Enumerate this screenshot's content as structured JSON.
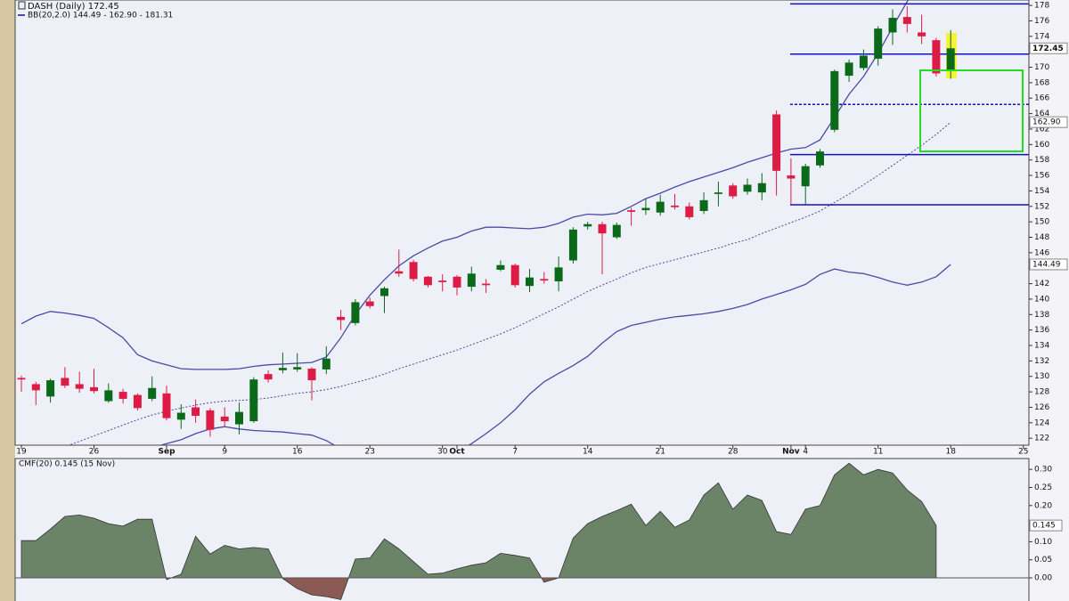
{
  "chart_data": [
    {
      "type": "candlestick",
      "title": "DASH (Daily) 172.45",
      "categories": [
        "19",
        null,
        null,
        null,
        null,
        "26",
        null,
        null,
        null,
        null,
        "Sep",
        null,
        null,
        null,
        "9",
        null,
        null,
        null,
        null,
        "16",
        null,
        null,
        null,
        null,
        "23",
        null,
        null,
        null,
        null,
        "30",
        "Oct",
        null,
        null,
        null,
        "7",
        null,
        null,
        null,
        null,
        "14",
        null,
        null,
        null,
        null,
        "21",
        null,
        null,
        null,
        null,
        "28",
        null,
        null,
        null,
        "Nov",
        "4",
        null,
        null,
        null,
        null,
        "11",
        null,
        null,
        null,
        null,
        "18",
        null,
        null,
        null,
        null,
        "25"
      ],
      "open": [
        129.8,
        129,
        127.4,
        129.8,
        129,
        128.6,
        126.8,
        128,
        127.6,
        127.1,
        127.8,
        124.4,
        126,
        125.6,
        124.8,
        123.8,
        124.2,
        130.3,
        130.8,
        130.9,
        131,
        130.9,
        137.7,
        136.9,
        139.7,
        140.4,
        143.6,
        144.8,
        142.9,
        142.4,
        142.9,
        141.6,
        142,
        143.8,
        144.4,
        141.7,
        142.6,
        142.3,
        145,
        149.4,
        149.7,
        148,
        151.5,
        151.5,
        151.2,
        152.1,
        152,
        151.4,
        153.6,
        154.7,
        153.9,
        153.8,
        163.9,
        156,
        154.6,
        157.3,
        161.9,
        168.9,
        169.9,
        171.1,
        174.5,
        176.5,
        174.5,
        173.5,
        169.5,
        null,
        null,
        null,
        null,
        null
      ],
      "high": [
        130.1,
        129.3,
        129.7,
        131.2,
        130.6,
        131,
        129.1,
        128.4,
        127.8,
        130,
        128.8,
        126.4,
        127,
        125.9,
        126,
        126.6,
        129.9,
        130.8,
        133.1,
        133,
        131.2,
        133.9,
        138.6,
        140,
        140.2,
        141.6,
        146.4,
        145.1,
        143,
        143.2,
        143.1,
        144.2,
        142.6,
        145,
        144.6,
        143.9,
        143.5,
        145.5,
        149.3,
        150,
        150,
        149.9,
        151.8,
        153,
        153.5,
        153.6,
        152.5,
        153.8,
        155.2,
        155,
        155.6,
        156.3,
        164.4,
        158.2,
        157.5,
        159.4,
        169.7,
        171,
        172.3,
        175.3,
        177.5,
        177.9,
        176.8,
        173.8,
        174.8,
        null,
        null,
        null,
        null,
        null
      ],
      "low": [
        128,
        126.3,
        126.6,
        128.5,
        127.9,
        127.8,
        126.6,
        126.5,
        125.6,
        126.8,
        124.3,
        123.2,
        124,
        122.2,
        123.5,
        122.5,
        124,
        129.2,
        130.4,
        130.6,
        126.9,
        130.3,
        136,
        136.6,
        138.8,
        138.2,
        142.9,
        142.3,
        141.5,
        141,
        140.5,
        141,
        140.8,
        143.6,
        141.5,
        140.9,
        142,
        141,
        144.6,
        149,
        143.2,
        147.8,
        149.5,
        150.9,
        150.8,
        151.6,
        150.3,
        151,
        152,
        153,
        153.5,
        152.8,
        153.4,
        152.3,
        152.3,
        157,
        161.6,
        168.1,
        169.6,
        170.2,
        172.9,
        174.5,
        173,
        168.8,
        168.5,
        null,
        null,
        null,
        null,
        null
      ],
      "close": [
        129.6,
        128.2,
        129.5,
        128.8,
        128.4,
        128.1,
        128.2,
        127.1,
        125.9,
        128.5,
        124.6,
        125.3,
        124.9,
        123.1,
        124.2,
        125.4,
        129.6,
        129.6,
        131.1,
        131.2,
        129.5,
        132.3,
        137.3,
        139.6,
        139.1,
        141.4,
        143.3,
        142.6,
        141.8,
        142.2,
        141.5,
        143.3,
        141.8,
        144.4,
        141.8,
        142.8,
        142.4,
        144.1,
        149,
        149.7,
        148.5,
        149.6,
        151.3,
        151.8,
        152.6,
        151.9,
        150.6,
        152.8,
        153.8,
        153.3,
        154.8,
        155,
        156.6,
        155.6,
        157.2,
        159.1,
        169.5,
        170.6,
        171.5,
        175,
        176.4,
        175.6,
        174,
        169.2,
        172.45,
        null,
        null,
        null,
        null,
        null
      ],
      "up_color": "#0b6a1a",
      "down_color": "#dc1c44",
      "bands": {
        "label": "BB(20,2.0) 144.49 - 162.90 - 181.31",
        "color": "#4a4aa6",
        "upper": [
          136.8,
          137.8,
          138.4,
          138.2,
          137.9,
          137.5,
          136.3,
          135,
          132.8,
          132,
          131.5,
          131,
          130.9,
          130.9,
          130.9,
          131,
          131.3,
          131.5,
          131.6,
          131.7,
          131.8,
          132.5,
          135,
          138,
          140.5,
          142.5,
          144.3,
          145.6,
          146.6,
          147.5,
          148,
          148.8,
          149.3,
          149.3,
          149.2,
          149.1,
          149.3,
          149.8,
          150.6,
          151,
          150.9,
          151.1,
          152,
          153,
          153.7,
          154.5,
          155.2,
          155.8,
          156.4,
          157,
          157.7,
          158.3,
          158.9,
          159.4,
          159.6,
          160.6,
          163.5,
          166.5,
          168.8,
          171.8,
          175.2,
          178.5,
          181,
          181.2,
          181.31,
          null,
          null,
          null,
          null,
          null
        ],
        "middle": [
          118.5,
          119.3,
          120.1,
          120.9,
          121.6,
          122.3,
          123,
          123.7,
          124.4,
          125,
          125.5,
          125.9,
          126.3,
          126.6,
          126.8,
          126.9,
          127,
          127.2,
          127.5,
          127.8,
          128,
          128.3,
          128.7,
          129.2,
          129.7,
          130.3,
          131,
          131.6,
          132.2,
          132.8,
          133.4,
          134.1,
          134.8,
          135.5,
          136.3,
          137.2,
          138.1,
          139,
          140,
          141,
          141.8,
          142.6,
          143.4,
          144.1,
          144.6,
          145.1,
          145.6,
          146.1,
          146.6,
          147.2,
          147.7,
          148.5,
          149.2,
          149.9,
          150.6,
          151.4,
          152.5,
          153.6,
          154.8,
          156,
          157.3,
          158.6,
          159.9,
          161.3,
          162.9,
          null,
          null,
          null,
          null,
          null
        ],
        "lower": [
          114,
          114.5,
          115.2,
          116,
          116.8,
          117.6,
          118.5,
          119.3,
          120.2,
          120.8,
          121.3,
          121.8,
          122.6,
          123.2,
          123.5,
          123.2,
          123,
          122.9,
          122.8,
          122.6,
          122.4,
          121.7,
          120.6,
          119.8,
          119.5,
          119.3,
          118.9,
          118.7,
          118.8,
          119.5,
          120.3,
          121.3,
          122.6,
          124,
          125.7,
          127.7,
          129.3,
          130.4,
          131.4,
          132.6,
          134.3,
          135.8,
          136.6,
          137,
          137.4,
          137.7,
          137.9,
          138.1,
          138.4,
          138.8,
          139.3,
          140,
          140.6,
          141.2,
          141.9,
          143.2,
          143.9,
          143.5,
          143.3,
          142.8,
          142.2,
          141.8,
          142.2,
          142.9,
          144.49,
          null,
          null,
          null,
          null,
          null
        ]
      },
      "levels": [
        178.2,
        171.7,
        165.2,
        158.7,
        152.2
      ],
      "level_styles": [
        "solid",
        "solid",
        "dashed",
        "solid",
        "solid"
      ],
      "level_color": "#1010c8",
      "price_markers": [
        {
          "value": 172.45,
          "label": "172.45"
        },
        {
          "value": 162.9,
          "label": "162.90"
        },
        {
          "value": 144.49,
          "label": "144.49"
        }
      ],
      "ylim": [
        121.1,
        178.7
      ],
      "yticks": [
        122,
        124,
        126,
        128,
        130,
        132,
        134,
        136,
        138,
        140,
        142,
        144,
        146,
        148,
        150,
        152,
        154,
        156,
        158,
        160,
        162,
        164,
        166,
        168,
        170,
        172,
        174,
        176,
        178
      ]
    },
    {
      "type": "area",
      "title": "CMF(20) 0.145 (15 Nov)",
      "values": [
        0.103,
        0.103,
        0.135,
        0.17,
        0.174,
        0.165,
        0.15,
        0.143,
        0.162,
        0.162,
        -0.005,
        0.01,
        0.115,
        0.066,
        0.09,
        0.08,
        0.084,
        0.08,
        -0.002,
        -0.03,
        -0.047,
        -0.052,
        -0.06,
        0.052,
        0.055,
        0.108,
        0.08,
        0.045,
        0.01,
        0.013,
        0.025,
        0.035,
        0.042,
        0.068,
        0.062,
        0.055,
        -0.012,
        0,
        0.11,
        0.15,
        0.17,
        0.186,
        0.204,
        0.145,
        0.184,
        0.14,
        0.16,
        0.229,
        0.263,
        0.19,
        0.229,
        0.214,
        0.128,
        0.12,
        0.19,
        0.2,
        0.285,
        0.317,
        0.285,
        0.3,
        0.29,
        0.243,
        0.211,
        0.145,
        null,
        null,
        null,
        null,
        null,
        null
      ],
      "color": "#6b8468",
      "negative_color": "#8c5a55",
      "value_marker": {
        "value": 0.145,
        "label": "0.145"
      },
      "ylim": [
        -0.064,
        0.33
      ],
      "yticks": [
        {
          "value": 0,
          "label": "0.00"
        },
        {
          "value": 0.05,
          "label": "0.05"
        },
        {
          "value": 0.1,
          "label": "0.10"
        },
        {
          "value": 0.15,
          "label": "0.15"
        },
        {
          "value": 0.2,
          "label": "0.20"
        },
        {
          "value": 0.25,
          "label": "0.25"
        },
        {
          "value": 0.3,
          "label": "0.30"
        }
      ]
    }
  ]
}
